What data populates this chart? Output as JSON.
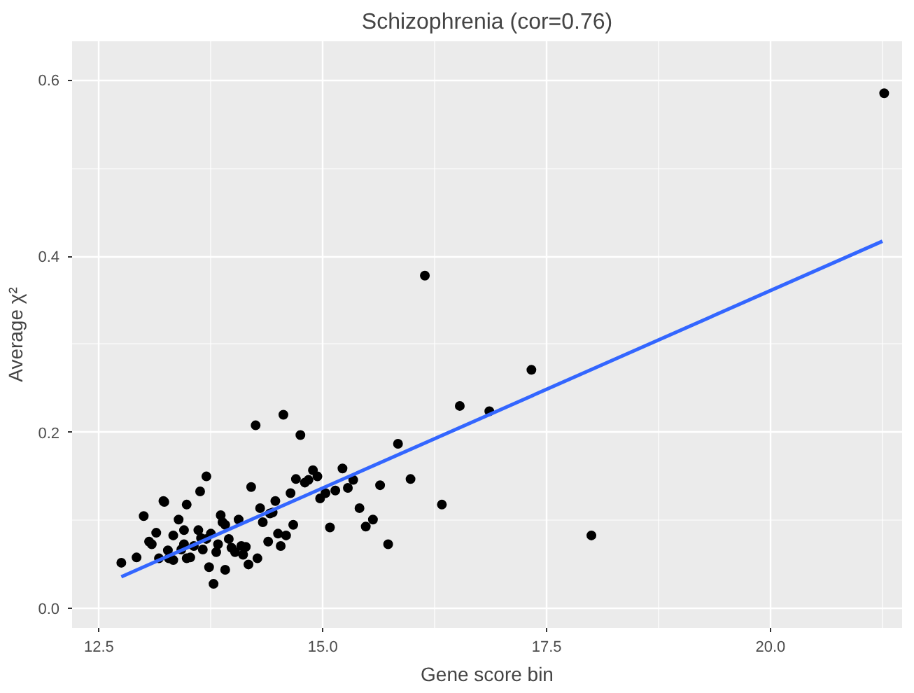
{
  "chart_data": {
    "type": "scatter",
    "title": "Schizophrenia (cor=0.76)",
    "xlabel": "Gene score bin",
    "ylabel": "Average χ²",
    "xlim": [
      12.2,
      21.47
    ],
    "ylim": [
      -0.022,
      0.644
    ],
    "xticks": [
      12.5,
      {
        "value": 15,
        "label": "15.0"
      },
      17.5,
      {
        "value": 20,
        "label": "20.0"
      }
    ],
    "yticks": [
      {
        "value": 0,
        "label": "0.0"
      },
      0.2,
      0.4,
      0.6
    ],
    "grid": true,
    "series": [
      {
        "color": "#000000",
        "marker": "circle",
        "x": [
          12.75,
          12.92,
          13.0,
          13.06,
          13.09,
          13.14,
          13.22,
          13.23,
          13.17,
          13.27,
          13.28,
          13.33,
          13.33,
          13.39,
          13.45,
          13.48,
          13.45,
          13.42,
          13.48,
          13.52,
          13.56,
          13.61,
          13.63,
          13.64,
          13.66,
          13.7,
          13.7,
          13.75,
          13.73,
          13.78,
          13.81,
          13.83,
          13.86,
          13.88,
          13.91,
          13.91,
          13.95,
          13.98,
          14.02,
          14.06,
          14.09,
          14.14,
          14.11,
          14.17,
          14.2,
          14.25,
          14.27,
          14.3,
          14.33,
          14.39,
          14.41,
          14.47,
          14.44,
          14.5,
          14.53,
          14.56,
          14.59,
          14.64,
          14.67,
          14.7,
          14.75,
          14.8,
          14.84,
          14.89,
          14.94,
          14.97,
          15.03,
          15.08,
          15.14,
          15.22,
          15.28,
          15.34,
          15.64,
          15.41,
          15.56,
          15.48,
          15.73,
          15.84,
          15.98,
          16.14,
          16.33,
          16.53,
          16.86,
          17.33,
          18.0,
          21.27
        ],
        "values": [
          0.052,
          0.058,
          0.105,
          0.076,
          0.073,
          0.086,
          0.122,
          0.121,
          0.057,
          0.066,
          0.057,
          0.055,
          0.083,
          0.101,
          0.089,
          0.118,
          0.073,
          0.067,
          0.057,
          0.058,
          0.071,
          0.089,
          0.133,
          0.08,
          0.067,
          0.15,
          0.079,
          0.085,
          0.047,
          0.028,
          0.064,
          0.073,
          0.106,
          0.098,
          0.095,
          0.044,
          0.079,
          0.069,
          0.064,
          0.101,
          0.071,
          0.07,
          0.061,
          0.05,
          0.138,
          0.208,
          0.057,
          0.114,
          0.098,
          0.076,
          0.108,
          0.122,
          0.109,
          0.085,
          0.071,
          0.22,
          0.083,
          0.131,
          0.095,
          0.147,
          0.197,
          0.143,
          0.146,
          0.157,
          0.15,
          0.125,
          0.131,
          0.092,
          0.134,
          0.159,
          0.137,
          0.146,
          0.14,
          0.114,
          0.101,
          0.093,
          0.073,
          0.187,
          0.147,
          0.378,
          0.118,
          0.23,
          0.224,
          0.271,
          0.083,
          0.585
        ]
      },
      {
        "type": "line",
        "marker": "none",
        "color": "#3366ff",
        "x": [
          12.75,
          21.25
        ],
        "values": [
          0.036,
          0.417
        ]
      }
    ]
  }
}
